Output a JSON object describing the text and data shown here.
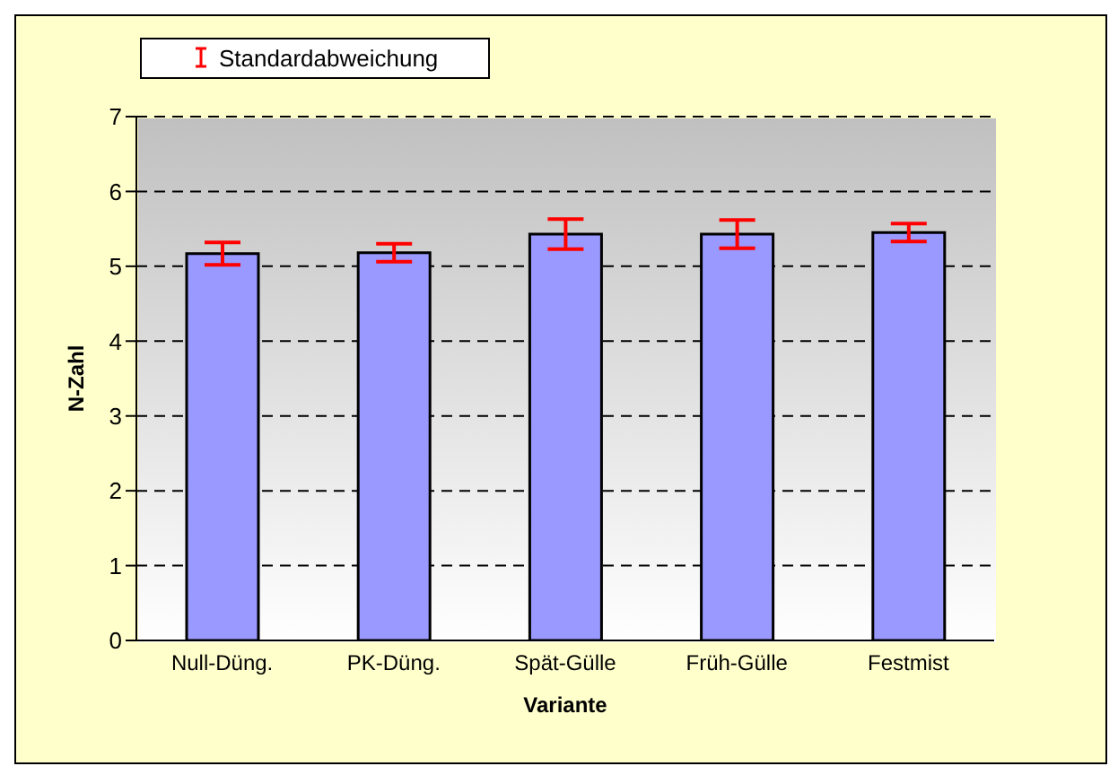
{
  "chart_data": {
    "type": "bar",
    "xlabel": "Variante",
    "ylabel": "N-Zahl",
    "categories": [
      "Null-Düng.",
      "PK-Düng.",
      "Spät-Gülle",
      "Früh-Gülle",
      "Festmist"
    ],
    "series": [
      {
        "name": "Standardabweichung",
        "color": "#9999ff",
        "values": [
          5.17,
          5.18,
          5.43,
          5.43,
          5.45
        ],
        "errors": [
          0.15,
          0.12,
          0.2,
          0.19,
          0.12
        ]
      }
    ],
    "ylim": [
      0,
      7
    ],
    "yticks": [
      0,
      1,
      2,
      3,
      4,
      5,
      6,
      7
    ],
    "grid": "y",
    "legend": "top left"
  }
}
